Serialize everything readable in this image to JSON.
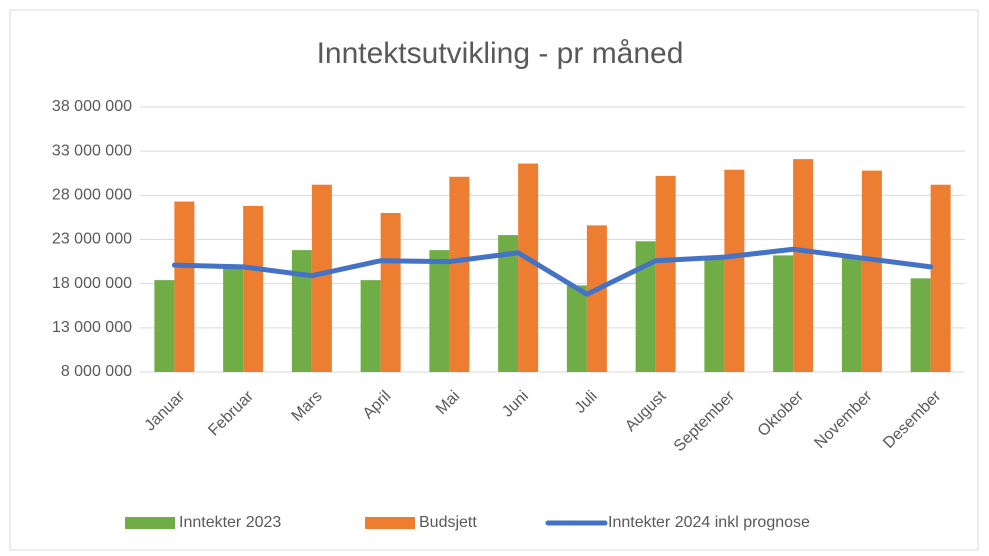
{
  "chart_data": {
    "type": "bar_line",
    "title": "Inntektsutvikling - pr måned",
    "categories": [
      "Januar",
      "Februar",
      "Mars",
      "April",
      "Mai",
      "Juni",
      "Juli",
      "August",
      "September",
      "Oktober",
      "November",
      "Desember"
    ],
    "series": [
      {
        "name": "Inntekter 2023",
        "type": "bar",
        "color": "#70ad47",
        "values": [
          18400000,
          19800000,
          21800000,
          18400000,
          21800000,
          23500000,
          17800000,
          22800000,
          20900000,
          21200000,
          20900000,
          18600000
        ]
      },
      {
        "name": "Budsjett",
        "type": "bar",
        "color": "#ed7d31",
        "values": [
          27300000,
          26800000,
          29200000,
          26000000,
          30100000,
          31600000,
          24600000,
          30200000,
          30900000,
          32100000,
          30800000,
          29200000
        ]
      },
      {
        "name": "Inntekter 2024 inkl prognose",
        "type": "line",
        "color": "#4472c4",
        "values": [
          20100000,
          19900000,
          18900000,
          20600000,
          20500000,
          21500000,
          16800000,
          20600000,
          21000000,
          21900000,
          20900000,
          19900000
        ]
      }
    ],
    "ylim": [
      8000000,
      38000000
    ],
    "yticks": [
      {
        "value": 8000000,
        "label": "8 000 000"
      },
      {
        "value": 13000000,
        "label": "13 000 000"
      },
      {
        "value": 18000000,
        "label": "18 000 000"
      },
      {
        "value": 23000000,
        "label": "23 000 000"
      },
      {
        "value": 28000000,
        "label": "28 000 000"
      },
      {
        "value": 33000000,
        "label": "33 000 000"
      },
      {
        "value": 38000000,
        "label": "38 000 000"
      }
    ],
    "grid": true,
    "legend": "bottom"
  }
}
